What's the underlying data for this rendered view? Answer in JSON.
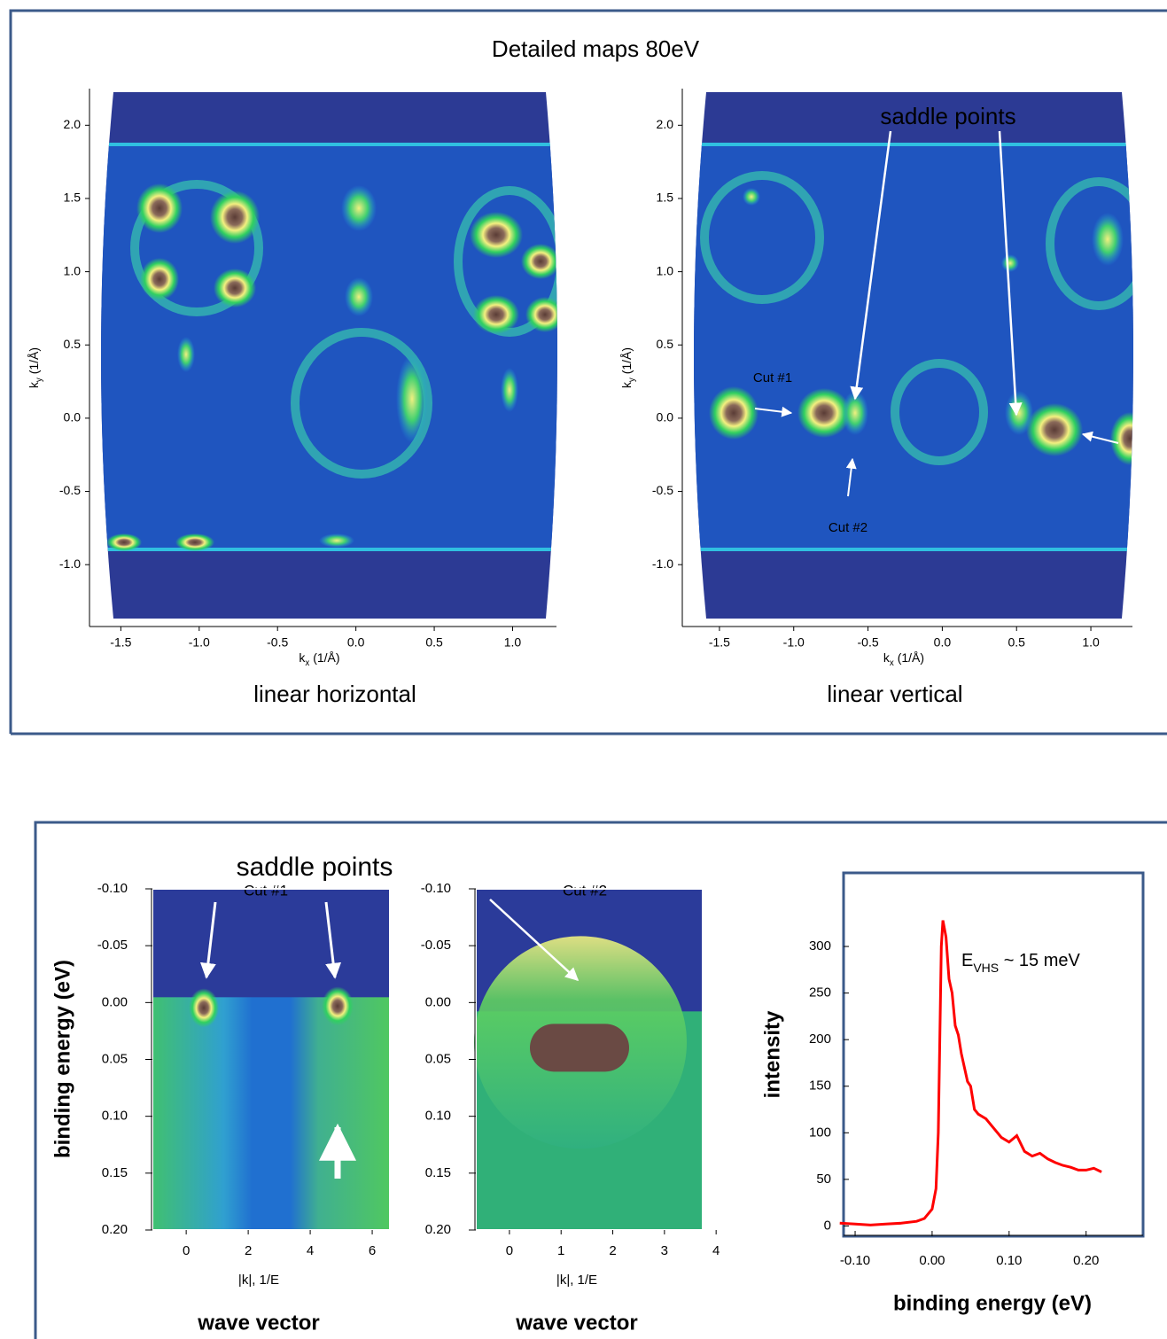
{
  "panels": [
    {
      "title": "Detailed maps 80eV"
    },
    {
      "title": "saddle points"
    }
  ],
  "chart_data": [
    {
      "type": "map",
      "caption": "linear horizontal",
      "xlabel": [
        "k",
        "x",
        " (1/Å)"
      ],
      "ylabel": [
        "k",
        "y",
        " (1/Å)"
      ],
      "xlim": [
        -1.7,
        1.28
      ],
      "ylim": [
        -1.38,
        2.25
      ],
      "xticks": [
        -1.5,
        {
          "value": -1.0,
          "label": "-1.0"
        },
        -0.5,
        {
          "value": 0.0,
          "label": "0.0"
        },
        0.5,
        {
          "value": 1.0,
          "label": "1.0"
        }
      ],
      "yticks": [
        {
          "value": -1.0,
          "label": "-1.0"
        },
        -0.5,
        {
          "value": 0.0,
          "label": "0.0"
        },
        0.5,
        {
          "value": 1.0,
          "label": "1.0"
        },
        1.5,
        {
          "value": 2.0,
          "label": "2.0"
        }
      ],
      "annotations": []
    },
    {
      "type": "map",
      "caption": "linear vertical",
      "xlabel": [
        "k",
        "x",
        " (1/Å)"
      ],
      "ylabel": [
        "k",
        "y",
        " (1/Å)"
      ],
      "xlim": [
        -1.75,
        1.28
      ],
      "ylim": [
        -1.38,
        2.25
      ],
      "xticks": [
        -1.5,
        {
          "value": -1.0,
          "label": "-1.0"
        },
        -0.5,
        {
          "value": 0.0,
          "label": "0.0"
        },
        0.5,
        {
          "value": 1.0,
          "label": "1.0"
        }
      ],
      "yticks": [
        {
          "value": -1.0,
          "label": "-1.0"
        },
        -0.5,
        {
          "value": 0.0,
          "label": "0.0"
        },
        0.5,
        {
          "value": 1.0,
          "label": "1.0"
        },
        1.5,
        {
          "value": 2.0,
          "label": "2.0"
        }
      ],
      "annotations": [
        "saddle points",
        "Cut #1",
        "Cut #2"
      ]
    },
    {
      "type": "cut",
      "ylabel": "binding energy (eV)",
      "xlabel": "|k|, 1/E",
      "caption": "wave vector",
      "y_inverted": true,
      "xlim": [
        -1.09,
        6.57
      ],
      "ylim": [
        -0.1,
        0.2
      ],
      "xticks": [
        0,
        2,
        4,
        6
      ],
      "yticks": [
        {
          "value": -0.1,
          "label": "-0.10"
        },
        -0.05,
        {
          "value": 0.0,
          "label": "0.00"
        },
        0.05,
        {
          "value": 0.1,
          "label": "0.10"
        },
        0.15,
        {
          "value": 0.2,
          "label": "0.20"
        }
      ],
      "annotations": [
        "Cut #1"
      ]
    },
    {
      "type": "cut",
      "xlabel": "|k|, 1/E",
      "caption": "wave vector",
      "y_inverted": true,
      "xlim": [
        -0.65,
        3.74
      ],
      "ylim": [
        -0.1,
        0.2
      ],
      "xticks": [
        0,
        1,
        2,
        3,
        4
      ],
      "yticks": [
        {
          "value": -0.1,
          "label": "-0.10"
        },
        -0.05,
        {
          "value": 0.0,
          "label": "0.00"
        },
        0.05,
        {
          "value": 0.1,
          "label": "0.10"
        },
        0.15,
        {
          "value": 0.2,
          "label": "0.20"
        }
      ],
      "annotations": [
        "Cut #2"
      ]
    },
    {
      "type": "line",
      "ylabel": "intensity",
      "xlabel": "binding energy (eV)",
      "color": "#ff0000",
      "annotation": [
        "E",
        "VHS",
        " ~ 15 meV"
      ],
      "xlim": [
        -0.115,
        0.274
      ],
      "ylim": [
        -11,
        379
      ],
      "xticks": [
        {
          "value": -0.1,
          "label": "-0.10"
        },
        {
          "value": 0.0,
          "label": "0.00"
        },
        {
          "value": 0.1,
          "label": "0.10"
        },
        {
          "value": 0.2,
          "label": "0.20"
        }
      ],
      "yticks": [
        0,
        50,
        100,
        150,
        200,
        250,
        300
      ],
      "x": [
        -0.12,
        -0.1,
        -0.08,
        -0.06,
        -0.04,
        -0.02,
        -0.01,
        0.0,
        0.005,
        0.008,
        0.01,
        0.012,
        0.014,
        0.018,
        0.022,
        0.026,
        0.03,
        0.034,
        0.038,
        0.042,
        0.046,
        0.05,
        0.055,
        0.06,
        0.07,
        0.08,
        0.09,
        0.1,
        0.11,
        0.12,
        0.13,
        0.14,
        0.15,
        0.16,
        0.17,
        0.18,
        0.19,
        0.2,
        0.21,
        0.22
      ],
      "values": [
        3,
        2,
        1,
        2,
        3,
        5,
        8,
        18,
        40,
        100,
        200,
        300,
        328,
        310,
        265,
        250,
        215,
        205,
        185,
        170,
        155,
        150,
        125,
        120,
        115,
        105,
        95,
        90,
        97,
        80,
        75,
        78,
        72,
        68,
        65,
        63,
        60,
        60,
        62,
        58
      ]
    }
  ]
}
